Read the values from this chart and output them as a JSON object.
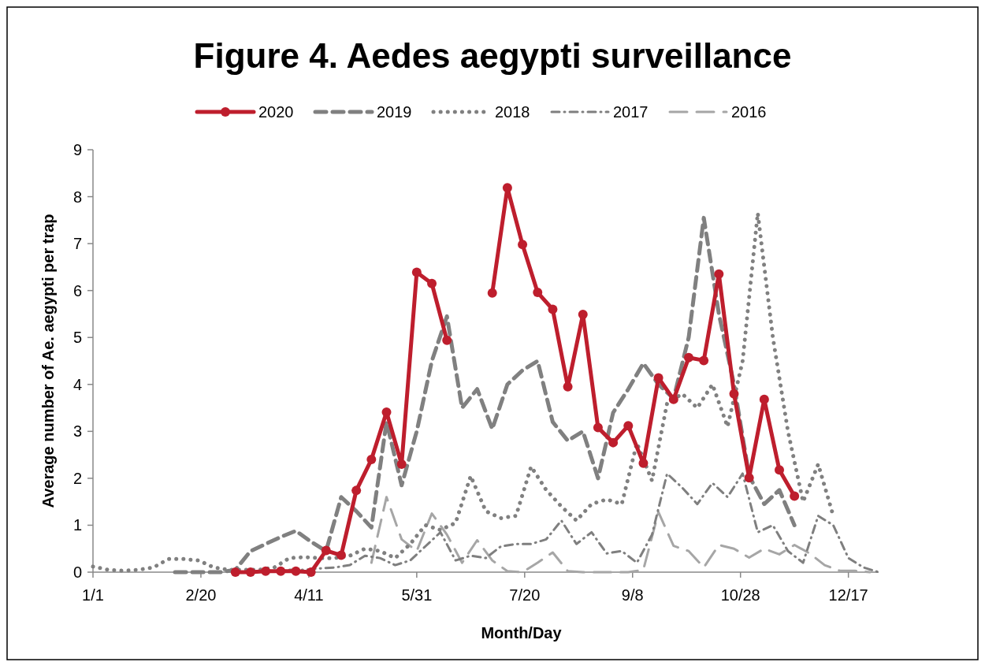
{
  "chart_data": {
    "type": "line",
    "title": "Figure 4. Aedes aegypti surveillance",
    "xlabel": "Month/Day",
    "ylabel": "Average number of Ae. aegypti per trap",
    "legend": "top",
    "grid": false,
    "xlim": [
      "--01-01",
      "--12-31"
    ],
    "xticks": [
      {
        "value": "--01-01",
        "label": "1/1"
      },
      {
        "value": "--02-20",
        "label": "2/20"
      },
      {
        "value": "--04-11",
        "label": "4/11"
      },
      {
        "value": "--05-31",
        "label": "5/31"
      },
      {
        "value": "--07-20",
        "label": "7/20"
      },
      {
        "value": "--09-08",
        "label": "9/8"
      },
      {
        "value": "--10-28",
        "label": "10/28"
      },
      {
        "value": "--12-17",
        "label": "12/17"
      }
    ],
    "ylim": [
      0,
      9
    ],
    "yticks": [
      0,
      1,
      2,
      3,
      4,
      5,
      6,
      7,
      8,
      9
    ],
    "series": [
      {
        "name": "2020",
        "color": "#be1e2d",
        "line_style": "solid",
        "marker": "circle",
        "x": [
          "--03-08",
          "--03-15",
          "--03-22",
          "--03-29",
          "--04-05",
          "--04-12",
          "--04-19",
          "--04-26",
          "--05-03",
          "--05-10",
          "--05-17",
          "--05-24",
          "--05-31",
          "--06-07",
          "--06-14",
          "--06-21",
          "--06-28",
          "--07-05",
          "--07-12",
          "--07-19",
          "--07-26",
          "--08-02",
          "--08-09",
          "--08-16",
          "--08-23",
          "--08-30",
          "--09-06",
          "--09-13",
          "--09-20",
          "--09-27",
          "--10-04",
          "--10-11",
          "--10-18",
          "--10-25",
          "--11-01",
          "--11-08",
          "--11-15",
          "--11-22"
        ],
        "values": [
          0,
          0,
          0.02,
          0.02,
          0.02,
          0,
          0.46,
          0.36,
          1.74,
          2.4,
          3.41,
          2.3,
          6.39,
          6.15,
          4.94,
          null,
          null,
          5.95,
          8.19,
          6.98,
          5.96,
          5.6,
          3.95,
          5.49,
          3.08,
          2.76,
          3.12,
          2.32,
          4.14,
          3.68,
          4.57,
          4.51,
          6.35,
          3.8,
          2.01,
          3.68,
          2.18,
          1.62
        ]
      },
      {
        "name": "2019",
        "color": "#808080",
        "line_style": "dashed",
        "marker": "none",
        "x": [
          "--02-08",
          "--02-15",
          "--02-22",
          "--03-01",
          "--03-08",
          "--03-15",
          "--03-22",
          "--03-29",
          "--04-05",
          "--04-12",
          "--04-19",
          "--04-26",
          "--05-03",
          "--05-10",
          "--05-17",
          "--05-24",
          "--05-31",
          "--06-07",
          "--06-14",
          "--06-21",
          "--06-28",
          "--07-05",
          "--07-12",
          "--07-19",
          "--07-26",
          "--08-02",
          "--08-09",
          "--08-16",
          "--08-23",
          "--08-30",
          "--09-06",
          "--09-13",
          "--09-20",
          "--09-27",
          "--10-04",
          "--10-11",
          "--10-18",
          "--10-25",
          "--11-01",
          "--11-08",
          "--11-15",
          "--11-22"
        ],
        "values": [
          0,
          0,
          0,
          0,
          0.05,
          0.45,
          0.6,
          0.75,
          0.88,
          0.65,
          0.45,
          1.6,
          1.3,
          0.95,
          3.2,
          1.85,
          3.0,
          4.5,
          5.45,
          3.5,
          3.9,
          3.05,
          4.0,
          4.3,
          4.5,
          3.2,
          2.8,
          3.0,
          2.0,
          3.4,
          3.9,
          4.45,
          4.0,
          3.7,
          5.0,
          7.55,
          5.5,
          4.0,
          2.05,
          1.45,
          1.75,
          1.0
        ]
      },
      {
        "name": "2018",
        "color": "#808080",
        "line_style": "dotted",
        "marker": "none",
        "x": [
          "--01-01",
          "--01-08",
          "--01-15",
          "--01-22",
          "--01-29",
          "--02-05",
          "--02-12",
          "--02-19",
          "--02-26",
          "--03-05",
          "--03-12",
          "--03-19",
          "--03-26",
          "--04-02",
          "--04-09",
          "--04-16",
          "--04-23",
          "--04-30",
          "--05-07",
          "--05-14",
          "--05-21",
          "--05-28",
          "--06-04",
          "--06-11",
          "--06-18",
          "--06-25",
          "--07-02",
          "--07-09",
          "--07-16",
          "--07-23",
          "--07-30",
          "--08-06",
          "--08-13",
          "--08-20",
          "--08-27",
          "--09-03",
          "--09-10",
          "--09-17",
          "--09-24",
          "--10-01",
          "--10-08",
          "--10-15",
          "--10-22",
          "--10-29",
          "--11-05",
          "--11-12",
          "--11-19",
          "--11-26",
          "--12-03",
          "--12-10"
        ],
        "values": [
          0.12,
          0.05,
          0.03,
          0.05,
          0.1,
          0.28,
          0.28,
          0.25,
          0.1,
          0.05,
          0.05,
          0.05,
          0.1,
          0.3,
          0.32,
          0.3,
          0.3,
          0.35,
          0.5,
          0.45,
          0.3,
          0.6,
          1.0,
          0.9,
          1.05,
          2.05,
          1.3,
          1.15,
          1.2,
          2.25,
          1.75,
          1.4,
          1.1,
          1.45,
          1.55,
          1.45,
          2.75,
          1.95,
          3.6,
          3.8,
          3.5,
          4.0,
          3.1,
          4.5,
          7.65,
          5.0,
          3.0,
          1.5,
          2.3,
          1.2
        ]
      },
      {
        "name": "2017",
        "color": "#7f7f7f",
        "line_style": "dashdot",
        "marker": "none",
        "x": [
          "--04-02",
          "--04-09",
          "--04-16",
          "--04-23",
          "--04-30",
          "--05-07",
          "--05-14",
          "--05-21",
          "--05-28",
          "--06-04",
          "--06-11",
          "--06-18",
          "--06-25",
          "--07-02",
          "--07-09",
          "--07-16",
          "--07-23",
          "--07-30",
          "--08-06",
          "--08-13",
          "--08-20",
          "--08-27",
          "--09-03",
          "--09-10",
          "--09-17",
          "--09-24",
          "--10-01",
          "--10-08",
          "--10-15",
          "--10-22",
          "--10-29",
          "--11-05",
          "--11-12",
          "--11-19",
          "--11-26",
          "--12-03",
          "--12-10",
          "--12-17",
          "--12-24",
          "--12-31"
        ],
        "values": [
          0.05,
          0.05,
          0.08,
          0.1,
          0.15,
          0.35,
          0.3,
          0.15,
          0.25,
          0.55,
          0.85,
          0.25,
          0.35,
          0.3,
          0.55,
          0.6,
          0.6,
          0.7,
          1.1,
          0.6,
          0.85,
          0.4,
          0.45,
          0.2,
          0.8,
          2.1,
          1.8,
          1.45,
          1.9,
          1.6,
          2.1,
          0.85,
          1.0,
          0.45,
          0.2,
          1.2,
          1.0,
          0.3,
          0.1,
          0
        ]
      },
      {
        "name": "2016",
        "color": "#a6a6a6",
        "line_style": "dashed",
        "marker": "none",
        "x": [
          "--05-10",
          "--05-17",
          "--05-24",
          "--05-31",
          "--06-07",
          "--06-14",
          "--06-21",
          "--06-28",
          "--07-05",
          "--07-12",
          "--07-19",
          "--07-26",
          "--08-02",
          "--08-09",
          "--08-16",
          "--08-23",
          "--08-30",
          "--09-06",
          "--09-13",
          "--09-20",
          "--09-27",
          "--10-04",
          "--10-11",
          "--10-18",
          "--10-25",
          "--11-01",
          "--11-08",
          "--11-15",
          "--11-22",
          "--11-29",
          "--12-06",
          "--12-13",
          "--12-20",
          "--12-27"
        ],
        "values": [
          0.2,
          1.6,
          0.7,
          0.45,
          1.25,
          0.8,
          0.2,
          0.68,
          0.25,
          0.02,
          0,
          0.2,
          0.42,
          0.02,
          0,
          0,
          0,
          0,
          0.05,
          1.28,
          0.56,
          0.45,
          0.1,
          0.58,
          0.5,
          0.31,
          0.5,
          0.38,
          0.58,
          0.4,
          0.15,
          0.03,
          0.03,
          0
        ]
      }
    ]
  }
}
